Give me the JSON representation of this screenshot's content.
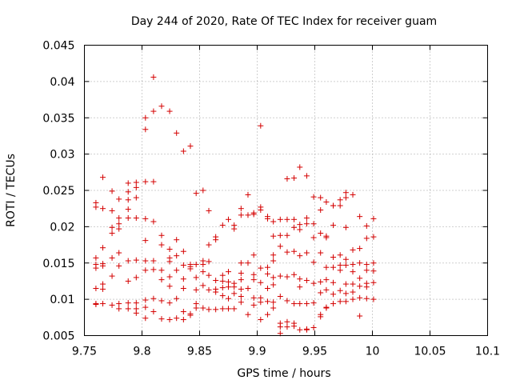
{
  "chart_data": {
    "type": "scatter",
    "title": "Day 244 of 2020, Rate Of TEC Index for receiver guam",
    "xlabel": "GPS time / hours",
    "ylabel": "ROTI / TECUs",
    "xlim": [
      9.75,
      10.1
    ],
    "ylim": [
      0.005,
      0.045
    ],
    "xticks": [
      "9.75",
      "9.8",
      "9.85",
      "9.9",
      "9.95",
      "10",
      "10.05",
      "10.1"
    ],
    "yticks": [
      "0.005",
      "0.01",
      "0.015",
      "0.02",
      "0.025",
      "0.03",
      "0.035",
      "0.04",
      "0.045"
    ],
    "grid": true,
    "marker": "plus",
    "color": "#d40000",
    "series": [
      {
        "points": [
          [
            9.76,
            0.0233
          ],
          [
            9.76,
            0.0227
          ],
          [
            9.76,
            0.0157
          ],
          [
            9.76,
            0.0148
          ],
          [
            9.76,
            0.0143
          ],
          [
            9.76,
            0.0115
          ],
          [
            9.76,
            0.0094
          ],
          [
            9.76,
            0.0093
          ],
          [
            9.766,
            0.0268
          ],
          [
            9.766,
            0.0225
          ],
          [
            9.766,
            0.0171
          ],
          [
            9.766,
            0.0149
          ],
          [
            9.766,
            0.0146
          ],
          [
            9.766,
            0.0121
          ],
          [
            9.766,
            0.0114
          ],
          [
            9.766,
            0.0094
          ],
          [
            9.774,
            0.0249
          ],
          [
            9.774,
            0.0222
          ],
          [
            9.774,
            0.0199
          ],
          [
            9.774,
            0.0191
          ],
          [
            9.774,
            0.0157
          ],
          [
            9.774,
            0.0132
          ],
          [
            9.774,
            0.0092
          ],
          [
            9.78,
            0.0238
          ],
          [
            9.78,
            0.0212
          ],
          [
            9.78,
            0.0204
          ],
          [
            9.78,
            0.0197
          ],
          [
            9.78,
            0.0164
          ],
          [
            9.78,
            0.0146
          ],
          [
            9.78,
            0.0094
          ],
          [
            9.78,
            0.0087
          ],
          [
            9.788,
            0.026
          ],
          [
            9.788,
            0.0248
          ],
          [
            9.788,
            0.0237
          ],
          [
            9.788,
            0.0224
          ],
          [
            9.788,
            0.0212
          ],
          [
            9.788,
            0.0153
          ],
          [
            9.788,
            0.0125
          ],
          [
            9.788,
            0.0095
          ],
          [
            9.788,
            0.0087
          ],
          [
            9.795,
            0.0261
          ],
          [
            9.795,
            0.0254
          ],
          [
            9.795,
            0.024
          ],
          [
            9.795,
            0.0212
          ],
          [
            9.795,
            0.0154
          ],
          [
            9.795,
            0.013
          ],
          [
            9.795,
            0.0095
          ],
          [
            9.795,
            0.0087
          ],
          [
            9.795,
            0.0081
          ],
          [
            9.803,
            0.035
          ],
          [
            9.803,
            0.0334
          ],
          [
            9.803,
            0.0262
          ],
          [
            9.803,
            0.0211
          ],
          [
            9.803,
            0.0181
          ],
          [
            9.803,
            0.0153
          ],
          [
            9.803,
            0.014
          ],
          [
            9.803,
            0.0099
          ],
          [
            9.803,
            0.0089
          ],
          [
            9.803,
            0.0074
          ],
          [
            9.81,
            0.0406
          ],
          [
            9.81,
            0.0359
          ],
          [
            9.81,
            0.0262
          ],
          [
            9.81,
            0.0207
          ],
          [
            9.81,
            0.0153
          ],
          [
            9.81,
            0.0141
          ],
          [
            9.81,
            0.0101
          ],
          [
            9.81,
            0.0083
          ],
          [
            9.817,
            0.0366
          ],
          [
            9.817,
            0.0188
          ],
          [
            9.817,
            0.0175
          ],
          [
            9.817,
            0.014
          ],
          [
            9.817,
            0.0127
          ],
          [
            9.817,
            0.0098
          ],
          [
            9.817,
            0.0073
          ],
          [
            9.824,
            0.0359
          ],
          [
            9.824,
            0.0169
          ],
          [
            9.824,
            0.0157
          ],
          [
            9.824,
            0.0152
          ],
          [
            9.824,
            0.0131
          ],
          [
            9.824,
            0.0118
          ],
          [
            9.824,
            0.0095
          ],
          [
            9.824,
            0.0072
          ],
          [
            9.83,
            0.0329
          ],
          [
            9.83,
            0.0182
          ],
          [
            9.83,
            0.016
          ],
          [
            9.83,
            0.014
          ],
          [
            9.83,
            0.0101
          ],
          [
            9.83,
            0.0074
          ],
          [
            9.836,
            0.0304
          ],
          [
            9.836,
            0.0166
          ],
          [
            9.836,
            0.0147
          ],
          [
            9.836,
            0.0128
          ],
          [
            9.836,
            0.0115
          ],
          [
            9.836,
            0.0083
          ],
          [
            9.836,
            0.0072
          ],
          [
            9.842,
            0.0311
          ],
          [
            9.842,
            0.0148
          ],
          [
            9.842,
            0.0145
          ],
          [
            9.842,
            0.0142
          ],
          [
            9.842,
            0.008
          ],
          [
            9.842,
            0.0078
          ],
          [
            9.847,
            0.0246
          ],
          [
            9.847,
            0.0148
          ],
          [
            9.847,
            0.013
          ],
          [
            9.847,
            0.0113
          ],
          [
            9.847,
            0.0094
          ],
          [
            9.847,
            0.0088
          ],
          [
            9.853,
            0.025
          ],
          [
            9.853,
            0.0153
          ],
          [
            9.853,
            0.0148
          ],
          [
            9.853,
            0.0138
          ],
          [
            9.853,
            0.0119
          ],
          [
            9.853,
            0.0088
          ],
          [
            9.858,
            0.0222
          ],
          [
            9.858,
            0.0175
          ],
          [
            9.858,
            0.0152
          ],
          [
            9.858,
            0.0133
          ],
          [
            9.858,
            0.0113
          ],
          [
            9.858,
            0.0086
          ],
          [
            9.864,
            0.0186
          ],
          [
            9.864,
            0.0182
          ],
          [
            9.864,
            0.0126
          ],
          [
            9.864,
            0.0114
          ],
          [
            9.864,
            0.011
          ],
          [
            9.864,
            0.0086
          ],
          [
            9.87,
            0.0202
          ],
          [
            9.87,
            0.0133
          ],
          [
            9.87,
            0.0125
          ],
          [
            9.87,
            0.0116
          ],
          [
            9.87,
            0.0105
          ],
          [
            9.87,
            0.0087
          ],
          [
            9.875,
            0.021
          ],
          [
            9.875,
            0.0138
          ],
          [
            9.875,
            0.0124
          ],
          [
            9.875,
            0.0117
          ],
          [
            9.875,
            0.0101
          ],
          [
            9.875,
            0.0087
          ],
          [
            9.88,
            0.0202
          ],
          [
            9.88,
            0.0197
          ],
          [
            9.88,
            0.0122
          ],
          [
            9.88,
            0.0117
          ],
          [
            9.88,
            0.0108
          ],
          [
            9.88,
            0.0087
          ],
          [
            9.886,
            0.0225
          ],
          [
            9.886,
            0.0216
          ],
          [
            9.886,
            0.015
          ],
          [
            9.886,
            0.0136
          ],
          [
            9.886,
            0.0127
          ],
          [
            9.886,
            0.0114
          ],
          [
            9.886,
            0.0104
          ],
          [
            9.886,
            0.0096
          ],
          [
            9.892,
            0.0244
          ],
          [
            9.892,
            0.0216
          ],
          [
            9.892,
            0.015
          ],
          [
            9.892,
            0.0115
          ],
          [
            9.892,
            0.0079
          ],
          [
            9.897,
            0.0217
          ],
          [
            9.897,
            0.0219
          ],
          [
            9.897,
            0.0161
          ],
          [
            9.897,
            0.0134
          ],
          [
            9.897,
            0.0127
          ],
          [
            9.897,
            0.0102
          ],
          [
            9.897,
            0.0092
          ],
          [
            9.903,
            0.0339
          ],
          [
            9.903,
            0.0227
          ],
          [
            9.903,
            0.0223
          ],
          [
            9.903,
            0.0143
          ],
          [
            9.903,
            0.0123
          ],
          [
            9.903,
            0.0102
          ],
          [
            9.903,
            0.0096
          ],
          [
            9.903,
            0.0072
          ],
          [
            9.909,
            0.0214
          ],
          [
            9.909,
            0.0211
          ],
          [
            9.909,
            0.0144
          ],
          [
            9.909,
            0.0135
          ],
          [
            9.909,
            0.0115
          ],
          [
            9.909,
            0.0097
          ],
          [
            9.909,
            0.0079
          ],
          [
            9.914,
            0.0207
          ],
          [
            9.914,
            0.0187
          ],
          [
            9.914,
            0.0161
          ],
          [
            9.914,
            0.0153
          ],
          [
            9.914,
            0.013
          ],
          [
            9.914,
            0.012
          ],
          [
            9.914,
            0.0096
          ],
          [
            9.914,
            0.0088
          ],
          [
            9.92,
            0.021
          ],
          [
            9.92,
            0.0188
          ],
          [
            9.92,
            0.0173
          ],
          [
            9.92,
            0.0132
          ],
          [
            9.92,
            0.0104
          ],
          [
            9.92,
            0.0067
          ],
          [
            9.92,
            0.0062
          ],
          [
            9.92,
            0.0053
          ],
          [
            9.926,
            0.0266
          ],
          [
            9.926,
            0.021
          ],
          [
            9.926,
            0.0188
          ],
          [
            9.926,
            0.0165
          ],
          [
            9.926,
            0.0131
          ],
          [
            9.926,
            0.0098
          ],
          [
            9.926,
            0.0069
          ],
          [
            9.926,
            0.0062
          ],
          [
            9.932,
            0.0267
          ],
          [
            9.932,
            0.021
          ],
          [
            9.932,
            0.0199
          ],
          [
            9.932,
            0.0166
          ],
          [
            9.932,
            0.0134
          ],
          [
            9.932,
            0.0094
          ],
          [
            9.932,
            0.0067
          ],
          [
            9.932,
            0.0063
          ],
          [
            9.937,
            0.0282
          ],
          [
            9.937,
            0.0203
          ],
          [
            9.937,
            0.0196
          ],
          [
            9.937,
            0.016
          ],
          [
            9.937,
            0.0128
          ],
          [
            9.937,
            0.0117
          ],
          [
            9.937,
            0.0094
          ],
          [
            9.937,
            0.0058
          ],
          [
            9.943,
            0.027
          ],
          [
            9.943,
            0.0212
          ],
          [
            9.943,
            0.0204
          ],
          [
            9.943,
            0.0164
          ],
          [
            9.943,
            0.0126
          ],
          [
            9.943,
            0.0094
          ],
          [
            9.943,
            0.0059
          ],
          [
            9.943,
            0.0058
          ],
          [
            9.949,
            0.0241
          ],
          [
            9.949,
            0.0204
          ],
          [
            9.949,
            0.0185
          ],
          [
            9.949,
            0.0151
          ],
          [
            9.949,
            0.0122
          ],
          [
            9.949,
            0.0095
          ],
          [
            9.949,
            0.0061
          ],
          [
            9.955,
            0.024
          ],
          [
            9.955,
            0.0223
          ],
          [
            9.955,
            0.0191
          ],
          [
            9.955,
            0.0164
          ],
          [
            9.955,
            0.0124
          ],
          [
            9.955,
            0.0109
          ],
          [
            9.955,
            0.0079
          ],
          [
            9.955,
            0.0076
          ],
          [
            9.96,
            0.0234
          ],
          [
            9.96,
            0.0187
          ],
          [
            9.96,
            0.0185
          ],
          [
            9.96,
            0.0144
          ],
          [
            9.96,
            0.0127
          ],
          [
            9.96,
            0.0113
          ],
          [
            9.96,
            0.0089
          ],
          [
            9.96,
            0.0088
          ],
          [
            9.966,
            0.0229
          ],
          [
            9.966,
            0.0229
          ],
          [
            9.966,
            0.0202
          ],
          [
            9.966,
            0.0158
          ],
          [
            9.966,
            0.0144
          ],
          [
            9.966,
            0.0123
          ],
          [
            9.966,
            0.0107
          ],
          [
            9.966,
            0.0094
          ],
          [
            9.972,
            0.0237
          ],
          [
            9.972,
            0.0229
          ],
          [
            9.972,
            0.0161
          ],
          [
            9.972,
            0.0147
          ],
          [
            9.972,
            0.014
          ],
          [
            9.972,
            0.0112
          ],
          [
            9.972,
            0.0097
          ],
          [
            9.977,
            0.0247
          ],
          [
            9.977,
            0.024
          ],
          [
            9.977,
            0.0199
          ],
          [
            9.977,
            0.0155
          ],
          [
            9.977,
            0.0147
          ],
          [
            9.977,
            0.0121
          ],
          [
            9.977,
            0.0108
          ],
          [
            9.977,
            0.0097
          ],
          [
            9.983,
            0.0244
          ],
          [
            9.983,
            0.0168
          ],
          [
            9.983,
            0.0148
          ],
          [
            9.983,
            0.0138
          ],
          [
            9.983,
            0.0121
          ],
          [
            9.983,
            0.011
          ],
          [
            9.983,
            0.01
          ],
          [
            9.989,
            0.0214
          ],
          [
            9.989,
            0.017
          ],
          [
            9.989,
            0.015
          ],
          [
            9.989,
            0.0129
          ],
          [
            9.989,
            0.0118
          ],
          [
            9.989,
            0.0102
          ],
          [
            9.989,
            0.0077
          ],
          [
            9.995,
            0.0201
          ],
          [
            9.995,
            0.0184
          ],
          [
            9.995,
            0.0148
          ],
          [
            9.995,
            0.014
          ],
          [
            9.995,
            0.0122
          ],
          [
            9.995,
            0.0117
          ],
          [
            9.995,
            0.0101
          ],
          [
            10.001,
            0.0211
          ],
          [
            10.001,
            0.0186
          ],
          [
            10.001,
            0.015
          ],
          [
            10.001,
            0.0139
          ],
          [
            10.001,
            0.0123
          ],
          [
            10.001,
            0.01
          ]
        ]
      }
    ]
  }
}
